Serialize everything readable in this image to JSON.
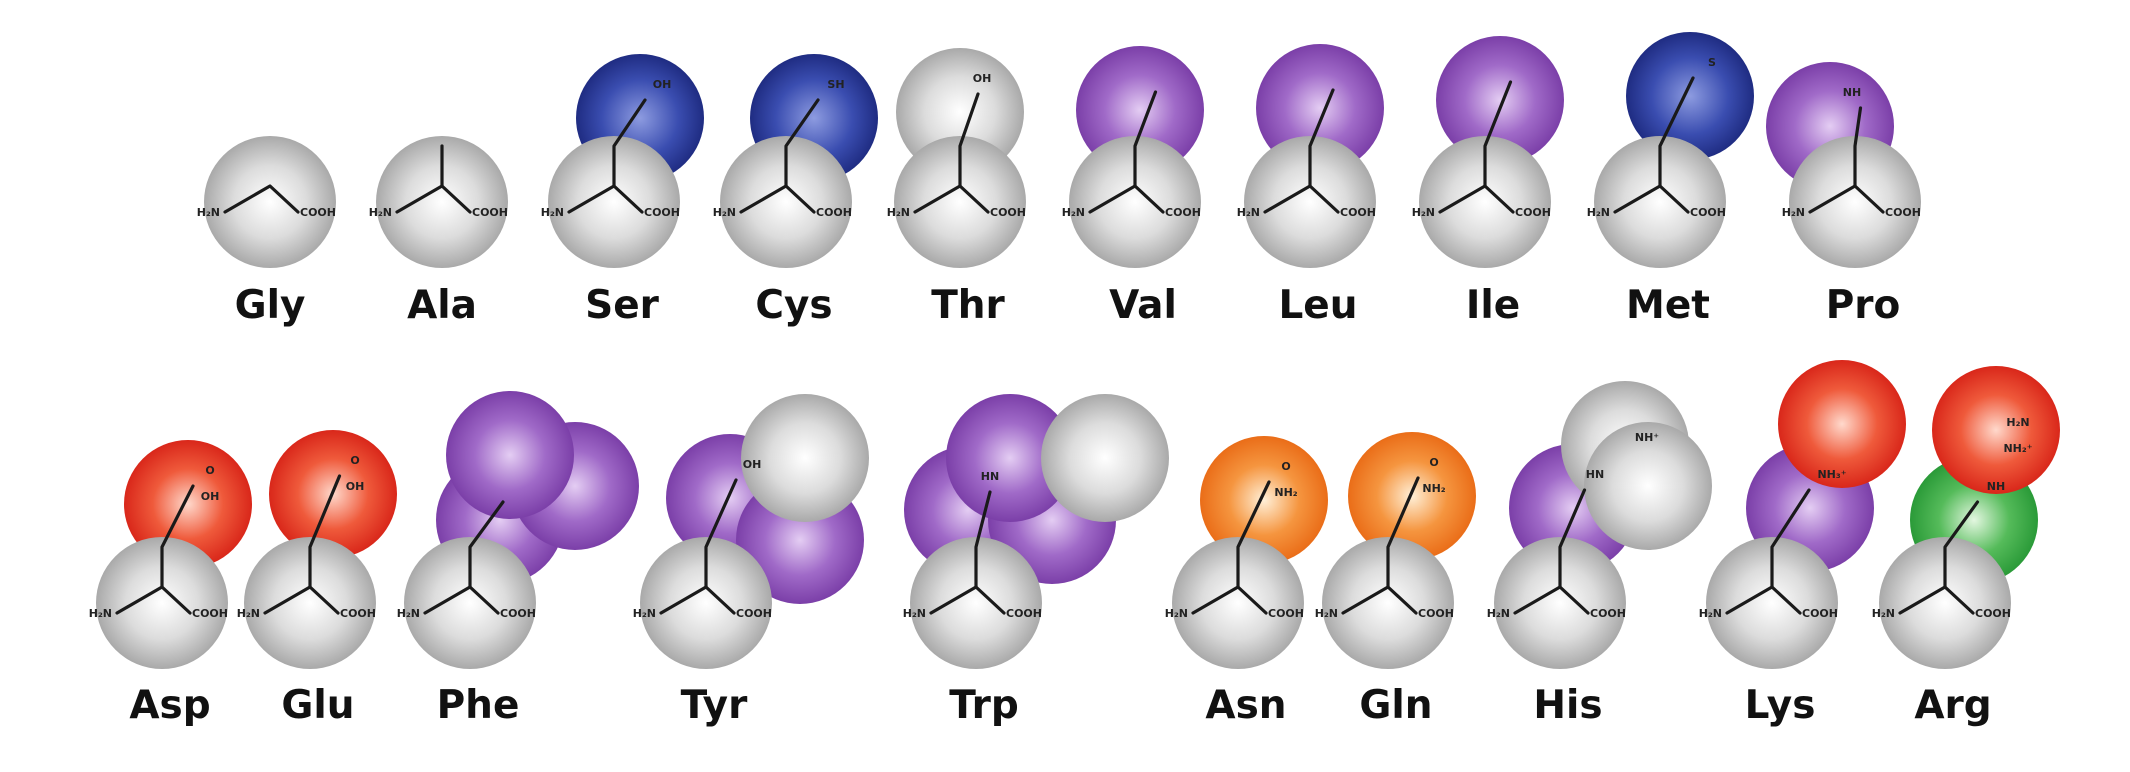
{
  "colors": {
    "grey": "#b9b9b9",
    "blue": "#2a3c9c",
    "purple": "#8446b0",
    "red": "#e3251a",
    "orange": "#f0741e",
    "green": "#31a23f"
  },
  "atoms": {
    "amine": "H₂N",
    "carboxyl": "COOH",
    "ring_nh": "N\nH"
  },
  "amino_acids": [
    {
      "name": "Gly",
      "row": 1,
      "side_groups": []
    },
    {
      "name": "Ala",
      "row": 1,
      "side_groups": []
    },
    {
      "name": "Ser",
      "row": 1,
      "side_groups": [
        "blue"
      ],
      "side_text": [
        "OH"
      ]
    },
    {
      "name": "Cys",
      "row": 1,
      "side_groups": [
        "blue"
      ],
      "side_text": [
        "SH"
      ]
    },
    {
      "name": "Thr",
      "row": 1,
      "side_groups": [
        "grey"
      ],
      "side_text": [
        "OH"
      ]
    },
    {
      "name": "Val",
      "row": 1,
      "side_groups": [
        "purple"
      ]
    },
    {
      "name": "Leu",
      "row": 1,
      "side_groups": [
        "purple"
      ]
    },
    {
      "name": "Ile",
      "row": 1,
      "side_groups": [
        "purple"
      ]
    },
    {
      "name": "Met",
      "row": 1,
      "side_groups": [
        "blue"
      ],
      "side_text": [
        "S"
      ]
    },
    {
      "name": "Pro",
      "row": 1,
      "side_groups": [
        "purple"
      ],
      "side_text": [
        "N\nH"
      ]
    },
    {
      "name": "Asp",
      "row": 2,
      "side_groups": [
        "red"
      ],
      "side_text": [
        "O",
        "OH"
      ]
    },
    {
      "name": "Glu",
      "row": 2,
      "side_groups": [
        "red"
      ],
      "side_text": [
        "O",
        "OH"
      ]
    },
    {
      "name": "Phe",
      "row": 2,
      "side_groups": [
        "purple",
        "purple",
        "purple"
      ]
    },
    {
      "name": "Tyr",
      "row": 2,
      "side_groups": [
        "purple",
        "purple",
        "grey"
      ],
      "side_text": [
        "OH"
      ]
    },
    {
      "name": "Trp",
      "row": 2,
      "side_groups": [
        "purple",
        "purple",
        "purple",
        "grey"
      ],
      "side_text": [
        "HN"
      ]
    },
    {
      "name": "Asn",
      "row": 2,
      "side_groups": [
        "orange"
      ],
      "side_text": [
        "O",
        "NH₂"
      ]
    },
    {
      "name": "Gln",
      "row": 2,
      "side_groups": [
        "orange"
      ],
      "side_text": [
        "O",
        "NH₂"
      ]
    },
    {
      "name": "His",
      "row": 2,
      "side_groups": [
        "purple",
        "grey",
        "grey"
      ],
      "side_text": [
        "HN",
        "NH⁺"
      ]
    },
    {
      "name": "Lys",
      "row": 2,
      "side_groups": [
        "purple",
        "red"
      ],
      "side_text": [
        "NH₃⁺"
      ]
    },
    {
      "name": "Arg",
      "row": 2,
      "side_groups": [
        "green",
        "red"
      ],
      "side_text": [
        "NH",
        "H₂N",
        "NH₂⁺"
      ]
    }
  ]
}
